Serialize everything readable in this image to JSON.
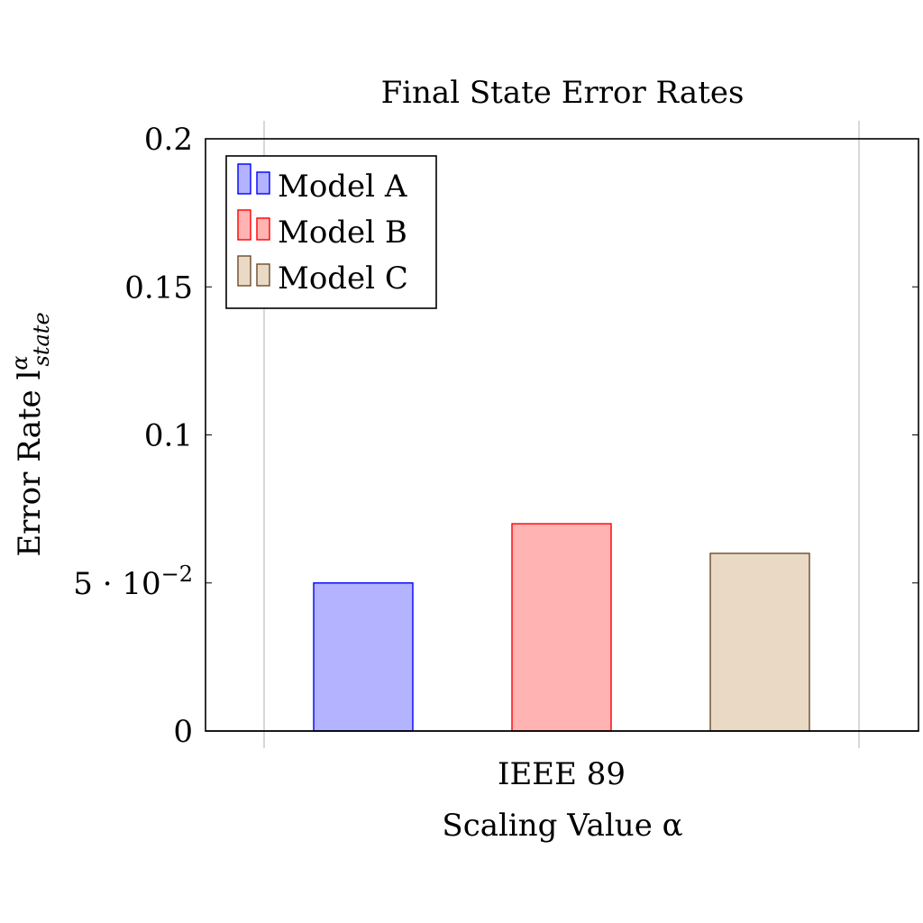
{
  "chart_data": {
    "type": "bar",
    "title": "Final State Error Rates",
    "xlabel": "Scaling Value α",
    "ylabel_main": "Error Rate l",
    "ylabel_sup": "α",
    "ylabel_sub": "state",
    "categories": [
      "IEEE 89"
    ],
    "ylim": [
      0,
      0.2
    ],
    "yticks": [
      {
        "value": 0,
        "label": "0"
      },
      {
        "value": 0.05,
        "label": "5 · 10",
        "exp": "−2"
      },
      {
        "value": 0.1,
        "label": "0.1"
      },
      {
        "value": 0.15,
        "label": "0.15"
      },
      {
        "value": 0.2,
        "label": "0.2"
      }
    ],
    "grid": "x-major",
    "legend_position": "top-left",
    "series": [
      {
        "name": "Model A",
        "values": [
          0.05
        ],
        "fill": "#b3b3ff",
        "stroke": "#0000ff"
      },
      {
        "name": "Model B",
        "values": [
          0.07
        ],
        "fill": "#ffb3b3",
        "stroke": "#ff0000"
      },
      {
        "name": "Model C",
        "values": [
          0.06
        ],
        "fill": "#eadac5",
        "stroke": "#6b4a2b"
      }
    ]
  }
}
